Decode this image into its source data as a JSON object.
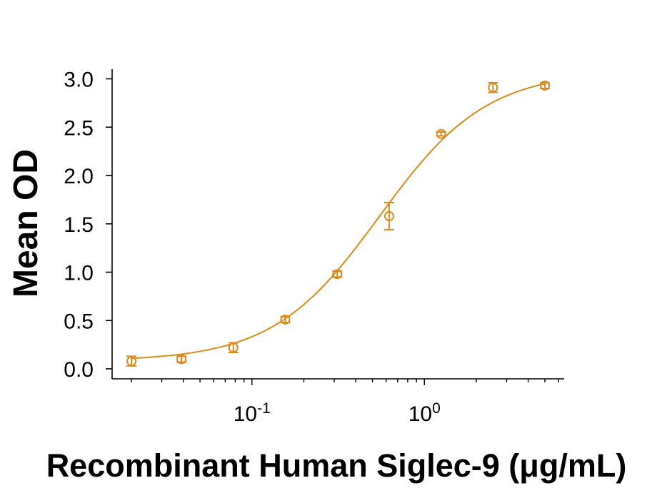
{
  "chart_data": {
    "type": "scatter",
    "title": "",
    "xlabel": "Recombinant Human Siglec-9 (μg/mL)",
    "ylabel": "Mean OD",
    "x_scale": "log",
    "xlim": [
      0.017,
      7.5
    ],
    "ylim": [
      -0.05,
      3.1
    ],
    "grid": false,
    "y_ticks": [
      "0.0",
      "0.5",
      "1.0",
      "1.5",
      "2.0",
      "2.5",
      "3.0"
    ],
    "x_ticks": [
      {
        "base": "10",
        "exp": "-1",
        "value": 0.1
      },
      {
        "base": "10",
        "exp": "0",
        "value": 1
      }
    ],
    "color": "#d98c1c",
    "series": [
      {
        "x": [
          0.02,
          0.039,
          0.078,
          0.156,
          0.3125,
          0.625,
          1.25,
          2.5,
          5.0
        ],
        "y": [
          0.08,
          0.1,
          0.22,
          0.51,
          0.98,
          1.58,
          2.43,
          2.91,
          2.93
        ],
        "err": [
          0.05,
          0.03,
          0.05,
          0.03,
          0.03,
          0.14,
          0.02,
          0.05,
          0.03
        ]
      }
    ],
    "fit_curve": {
      "bottom": 0.08,
      "top": 3.08,
      "ec50": 0.55,
      "hill": 1.4,
      "x_start": 0.02,
      "x_end": 5.0
    }
  }
}
